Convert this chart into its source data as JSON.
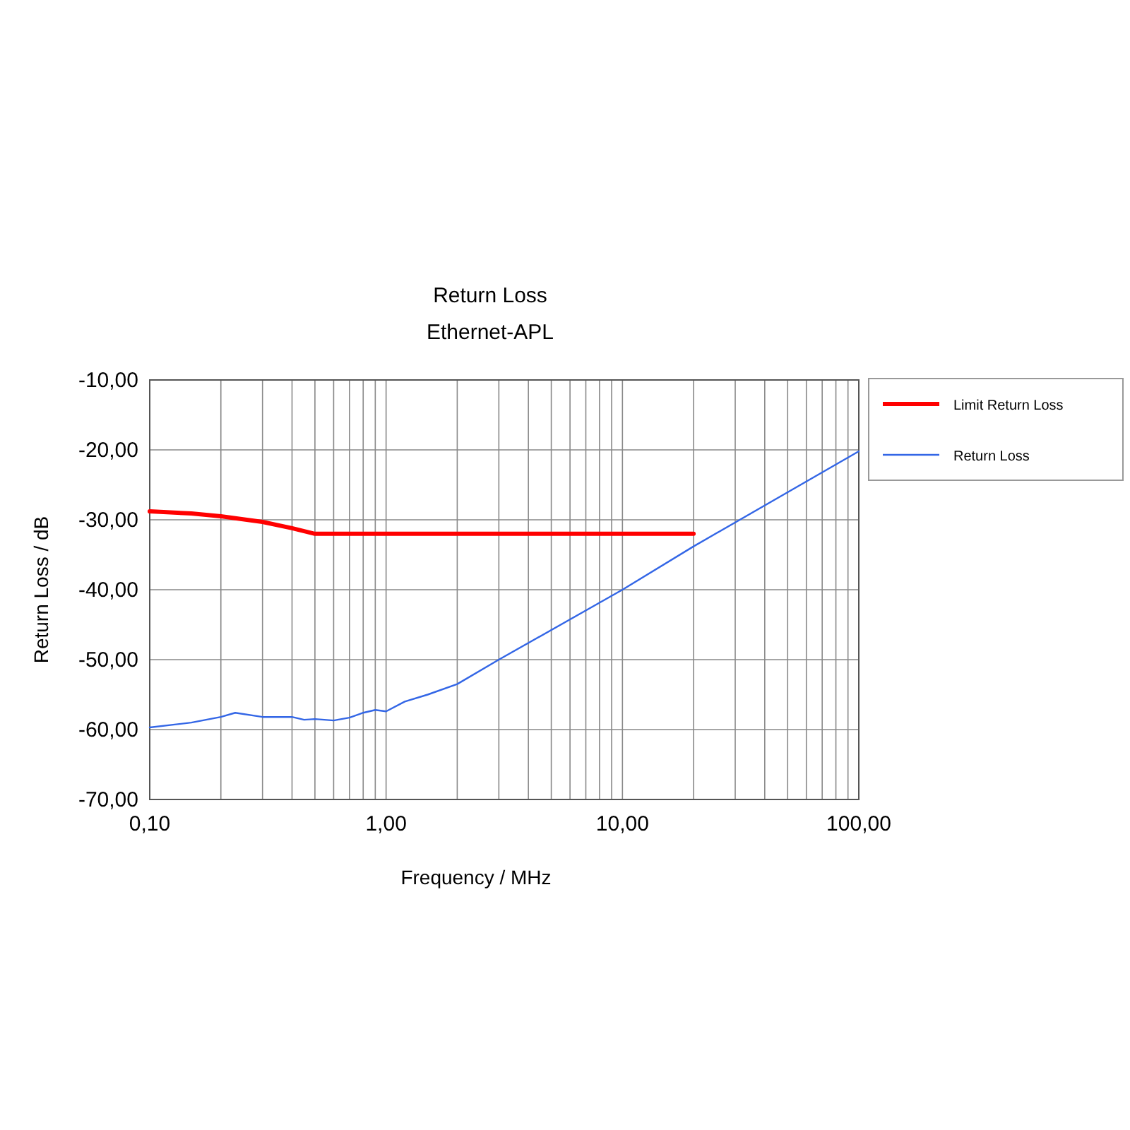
{
  "chart_data": {
    "type": "line",
    "title": "Return Loss",
    "subtitle": "Ethernet-APL",
    "xlabel": "Frequency / MHz",
    "ylabel": "Return Loss / dB",
    "log": "x",
    "xlim": [
      0.1,
      100
    ],
    "ylim": [
      -70,
      -10
    ],
    "xticks": [
      {
        "value": 0.1,
        "label": "0,10"
      },
      {
        "value": 0.2,
        "label": null
      },
      {
        "value": 0.3,
        "label": null
      },
      {
        "value": 0.4,
        "label": null
      },
      {
        "value": 0.5,
        "label": null
      },
      {
        "value": 0.6,
        "label": null
      },
      {
        "value": 0.7,
        "label": null
      },
      {
        "value": 0.8,
        "label": null
      },
      {
        "value": 0.9,
        "label": null
      },
      {
        "value": 1,
        "label": "1,00"
      },
      {
        "value": 2,
        "label": null
      },
      {
        "value": 3,
        "label": null
      },
      {
        "value": 4,
        "label": null
      },
      {
        "value": 5,
        "label": null
      },
      {
        "value": 6,
        "label": null
      },
      {
        "value": 7,
        "label": null
      },
      {
        "value": 8,
        "label": null
      },
      {
        "value": 9,
        "label": null
      },
      {
        "value": 10,
        "label": "10,00"
      },
      {
        "value": 20,
        "label": null
      },
      {
        "value": 30,
        "label": null
      },
      {
        "value": 40,
        "label": null
      },
      {
        "value": 50,
        "label": null
      },
      {
        "value": 60,
        "label": null
      },
      {
        "value": 70,
        "label": null
      },
      {
        "value": 80,
        "label": null
      },
      {
        "value": 90,
        "label": null
      },
      {
        "value": 100,
        "label": "100,00"
      }
    ],
    "yticks": [
      {
        "value": -70,
        "label": "-70,00"
      },
      {
        "value": -60,
        "label": "-60,00"
      },
      {
        "value": -50,
        "label": "-50,00"
      },
      {
        "value": -40,
        "label": "-40,00"
      },
      {
        "value": -30,
        "label": "-30,00"
      },
      {
        "value": -20,
        "label": "-20,00"
      },
      {
        "value": -10,
        "label": "-10,00"
      }
    ],
    "grid": true,
    "legend": "top right",
    "marker": "none",
    "line_style": "solid",
    "series": [
      {
        "name": "Limit Return Loss",
        "color": "#ff0000",
        "x": [
          0.1,
          0.15,
          0.2,
          0.3,
          0.4,
          0.5,
          20
        ],
        "values": [
          -28.8,
          -29.1,
          -29.5,
          -30.3,
          -31.2,
          -32,
          -32
        ]
      },
      {
        "name": "Return Loss",
        "color": "#3366e6",
        "x": [
          0.1,
          0.15,
          0.2,
          0.23,
          0.3,
          0.4,
          0.45,
          0.5,
          0.6,
          0.7,
          0.8,
          0.9,
          1,
          1.2,
          1.5,
          2,
          3,
          10,
          20,
          100
        ],
        "values": [
          -59.7,
          -59,
          -58.2,
          -57.6,
          -58.2,
          -58.2,
          -58.6,
          -58.5,
          -58.7,
          -58.3,
          -57.6,
          -57.2,
          -57.4,
          -56,
          -55,
          -53.5,
          -50,
          -40,
          -33.8,
          -20.2
        ]
      }
    ]
  }
}
